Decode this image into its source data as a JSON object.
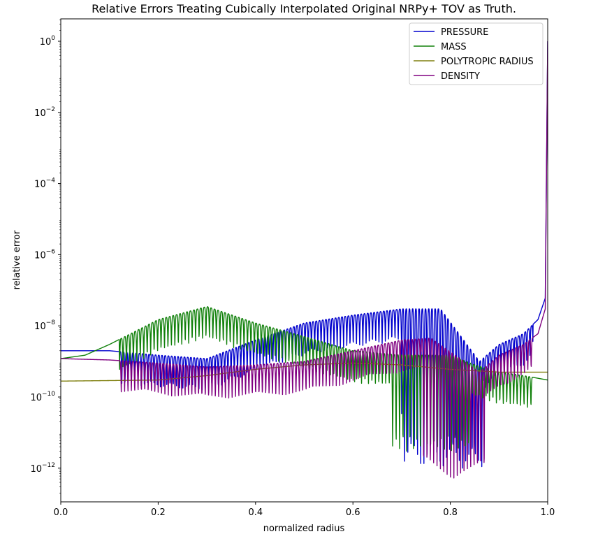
{
  "chart_data": {
    "type": "line",
    "title": "Relative Errors Treating Cubically Interpolated Original NRPy+ TOV as Truth.",
    "xlabel": "normalized radius",
    "ylabel": "relative error",
    "xlim": [
      0.0,
      1.0
    ],
    "ylim": [
      1e-13,
      4
    ],
    "yscale": "log",
    "x_ticks": [
      {
        "value": 0.0,
        "label": "0.0"
      },
      {
        "value": 0.2,
        "label": "0.2"
      },
      {
        "value": 0.4,
        "label": "0.4"
      },
      {
        "value": 0.6,
        "label": "0.6"
      },
      {
        "value": 0.8,
        "label": "0.8"
      },
      {
        "value": 1.0,
        "label": "1.0"
      }
    ],
    "y_ticks": [
      {
        "value": 1.0,
        "base": "10",
        "exp": "0"
      },
      {
        "value": 0.01,
        "base": "10",
        "exp": "−2"
      },
      {
        "value": 0.0001,
        "base": "10",
        "exp": "−4"
      },
      {
        "value": 1e-06,
        "base": "10",
        "exp": "−6"
      },
      {
        "value": 1e-08,
        "base": "10",
        "exp": "−8"
      },
      {
        "value": 1e-10,
        "base": "10",
        "exp": "−10"
      },
      {
        "value": 1e-12,
        "base": "10",
        "exp": "−12"
      }
    ],
    "grid": false,
    "legend_position": "top-right",
    "series": [
      {
        "name": "PRESSURE",
        "color": "#0000cd",
        "x": [
          0.0,
          0.1,
          0.2,
          0.3,
          0.4,
          0.5,
          0.6,
          0.7,
          0.78,
          0.86,
          0.9,
          0.95,
          0.98,
          0.995,
          1.0
        ],
        "y": [
          2e-09,
          2e-09,
          1.5e-09,
          1.2e-09,
          4e-09,
          1.2e-08,
          2e-08,
          3e-08,
          3e-08,
          1e-09,
          3e-09,
          6e-09,
          1.5e-08,
          6e-08,
          1.0
        ],
        "troughs": [
          0.7,
          0.87
        ],
        "trough_floor": 1e-12
      },
      {
        "name": "MASS",
        "color": "#10800a",
        "x": [
          0.0,
          0.05,
          0.1,
          0.2,
          0.3,
          0.4,
          0.5,
          0.6,
          0.7,
          0.8,
          0.85,
          0.9,
          0.95,
          1.0
        ],
        "y": [
          1.2e-09,
          1.5e-09,
          3e-09,
          1.5e-08,
          3.5e-08,
          1.2e-08,
          5e-09,
          2e-09,
          1.5e-09,
          1.5e-09,
          8e-10,
          5e-10,
          4e-10,
          3e-10
        ],
        "troughs": [
          0.68,
          0.84
        ],
        "trough_floor": 3e-12
      },
      {
        "name": "POLYTROPIC RADIUS",
        "color": "#808010",
        "x": [
          0.0,
          0.2,
          0.3,
          0.4,
          0.5,
          0.6,
          0.7,
          0.8,
          0.9,
          1.0
        ],
        "y": [
          2.8e-10,
          3e-10,
          4e-10,
          6e-10,
          8e-10,
          9e-10,
          8e-10,
          6e-10,
          5e-10,
          5e-10
        ],
        "troughs": [],
        "trough_floor": 1e-10
      },
      {
        "name": "DENSITY",
        "color": "#800080",
        "x": [
          0.0,
          0.1,
          0.2,
          0.3,
          0.4,
          0.5,
          0.6,
          0.7,
          0.76,
          0.86,
          0.9,
          0.95,
          0.98,
          0.995,
          1.0
        ],
        "y": [
          1.2e-09,
          1.1e-09,
          9e-10,
          7e-10,
          8e-10,
          1e-09,
          2e-09,
          4e-09,
          4.5e-09,
          5e-10,
          1.5e-09,
          3e-09,
          6e-09,
          3e-08,
          1.0
        ],
        "troughs": [
          0.74,
          0.87
        ],
        "trough_floor": 5e-13
      }
    ]
  }
}
